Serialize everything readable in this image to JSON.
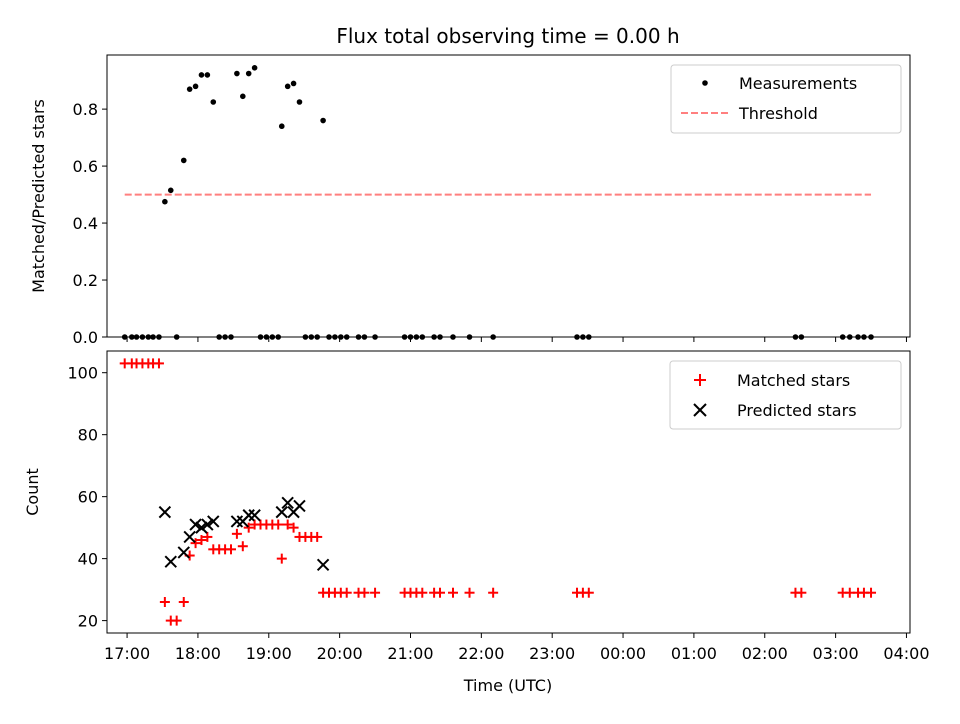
{
  "chart_data": [
    {
      "type": "scatter",
      "title": "Flux total observing time = 0.00 h",
      "xlabel": "",
      "ylabel": "Matched/Predicted stars",
      "xlim": [
        "16:43",
        "04:03"
      ],
      "ylim": [
        0,
        0.99
      ],
      "yticks": [
        "0.0",
        "0.2",
        "0.4",
        "0.6",
        "0.8"
      ],
      "legend": "top-right",
      "series": [
        {
          "name": "Measurements",
          "color": "#000000",
          "marker": "dot",
          "points": [
            {
              "x": "16:58",
              "y": 0
            },
            {
              "x": "17:04",
              "y": 0
            },
            {
              "x": "17:08",
              "y": 0
            },
            {
              "x": "17:13",
              "y": 0
            },
            {
              "x": "17:18",
              "y": 0
            },
            {
              "x": "17:22",
              "y": 0
            },
            {
              "x": "17:27",
              "y": 0
            },
            {
              "x": "17:32",
              "y": 0.475
            },
            {
              "x": "17:37",
              "y": 0.515
            },
            {
              "x": "17:42",
              "y": 0
            },
            {
              "x": "17:48",
              "y": 0.62
            },
            {
              "x": "17:53",
              "y": 0.87
            },
            {
              "x": "17:58",
              "y": 0.88
            },
            {
              "x": "18:03",
              "y": 0.92
            },
            {
              "x": "18:08",
              "y": 0.92
            },
            {
              "x": "18:13",
              "y": 0.825
            },
            {
              "x": "18:18",
              "y": 0
            },
            {
              "x": "18:23",
              "y": 0
            },
            {
              "x": "18:28",
              "y": 0
            },
            {
              "x": "18:33",
              "y": 0.925
            },
            {
              "x": "18:38",
              "y": 0.845
            },
            {
              "x": "18:43",
              "y": 0.925
            },
            {
              "x": "18:48",
              "y": 0.945
            },
            {
              "x": "18:53",
              "y": 0
            },
            {
              "x": "18:58",
              "y": 0
            },
            {
              "x": "19:03",
              "y": 0
            },
            {
              "x": "19:08",
              "y": 0
            },
            {
              "x": "19:11",
              "y": 0.74
            },
            {
              "x": "19:16",
              "y": 0.88
            },
            {
              "x": "19:21",
              "y": 0.89
            },
            {
              "x": "19:26",
              "y": 0.825
            },
            {
              "x": "19:31",
              "y": 0
            },
            {
              "x": "19:36",
              "y": 0
            },
            {
              "x": "19:41",
              "y": 0
            },
            {
              "x": "19:46",
              "y": 0.76
            },
            {
              "x": "19:51",
              "y": 0
            },
            {
              "x": "19:56",
              "y": 0
            },
            {
              "x": "20:01",
              "y": 0
            },
            {
              "x": "20:06",
              "y": 0
            },
            {
              "x": "20:16",
              "y": 0
            },
            {
              "x": "20:21",
              "y": 0
            },
            {
              "x": "20:30",
              "y": 0
            },
            {
              "x": "20:55",
              "y": 0
            },
            {
              "x": "21:00",
              "y": 0
            },
            {
              "x": "21:05",
              "y": 0
            },
            {
              "x": "21:10",
              "y": 0
            },
            {
              "x": "21:20",
              "y": 0
            },
            {
              "x": "21:25",
              "y": 0
            },
            {
              "x": "21:36",
              "y": 0
            },
            {
              "x": "21:50",
              "y": 0
            },
            {
              "x": "22:10",
              "y": 0
            },
            {
              "x": "23:21",
              "y": 0
            },
            {
              "x": "23:26",
              "y": 0
            },
            {
              "x": "23:31",
              "y": 0
            },
            {
              "x": "02:26",
              "y": 0
            },
            {
              "x": "02:31",
              "y": 0
            },
            {
              "x": "03:06",
              "y": 0
            },
            {
              "x": "03:12",
              "y": 0
            },
            {
              "x": "03:19",
              "y": 0
            },
            {
              "x": "03:24",
              "y": 0
            },
            {
              "x": "03:30",
              "y": 0
            }
          ]
        },
        {
          "name": "Threshold",
          "color": "#ff7f7f",
          "style": "dashed",
          "points": [
            {
              "x": "16:58",
              "y": 0.5
            },
            {
              "x": "03:30",
              "y": 0.5
            }
          ]
        }
      ]
    },
    {
      "type": "scatter",
      "xlabel": "Time (UTC)",
      "ylabel": "Count",
      "xlim": [
        "16:43",
        "04:03"
      ],
      "ylim": [
        16,
        107
      ],
      "xticks": [
        "17:00",
        "18:00",
        "19:00",
        "20:00",
        "21:00",
        "22:00",
        "23:00",
        "00:00",
        "01:00",
        "02:00",
        "03:00",
        "04:00"
      ],
      "yticks": [
        "20",
        "40",
        "60",
        "80",
        "100"
      ],
      "legend": "top-right",
      "series": [
        {
          "name": "Matched stars",
          "color": "#ff0000",
          "marker": "plus",
          "points": [
            {
              "x": "16:58",
              "y": 103
            },
            {
              "x": "17:04",
              "y": 103
            },
            {
              "x": "17:08",
              "y": 103
            },
            {
              "x": "17:13",
              "y": 103
            },
            {
              "x": "17:18",
              "y": 103
            },
            {
              "x": "17:22",
              "y": 103
            },
            {
              "x": "17:27",
              "y": 103
            },
            {
              "x": "17:32",
              "y": 26
            },
            {
              "x": "17:37",
              "y": 20
            },
            {
              "x": "17:42",
              "y": 20
            },
            {
              "x": "17:48",
              "y": 26
            },
            {
              "x": "17:53",
              "y": 41
            },
            {
              "x": "17:58",
              "y": 45
            },
            {
              "x": "18:03",
              "y": 46
            },
            {
              "x": "18:08",
              "y": 47
            },
            {
              "x": "18:13",
              "y": 43
            },
            {
              "x": "18:18",
              "y": 43
            },
            {
              "x": "18:23",
              "y": 43
            },
            {
              "x": "18:28",
              "y": 43
            },
            {
              "x": "18:33",
              "y": 48
            },
            {
              "x": "18:38",
              "y": 44
            },
            {
              "x": "18:43",
              "y": 50
            },
            {
              "x": "18:48",
              "y": 51
            },
            {
              "x": "18:53",
              "y": 51
            },
            {
              "x": "18:58",
              "y": 51
            },
            {
              "x": "19:03",
              "y": 51
            },
            {
              "x": "19:08",
              "y": 51
            },
            {
              "x": "19:11",
              "y": 40
            },
            {
              "x": "19:16",
              "y": 51
            },
            {
              "x": "19:21",
              "y": 50
            },
            {
              "x": "19:26",
              "y": 47
            },
            {
              "x": "19:31",
              "y": 47
            },
            {
              "x": "19:36",
              "y": 47
            },
            {
              "x": "19:41",
              "y": 47
            },
            {
              "x": "19:46",
              "y": 29
            },
            {
              "x": "19:51",
              "y": 29
            },
            {
              "x": "19:56",
              "y": 29
            },
            {
              "x": "20:01",
              "y": 29
            },
            {
              "x": "20:06",
              "y": 29
            },
            {
              "x": "20:16",
              "y": 29
            },
            {
              "x": "20:21",
              "y": 29
            },
            {
              "x": "20:30",
              "y": 29
            },
            {
              "x": "20:55",
              "y": 29
            },
            {
              "x": "21:00",
              "y": 29
            },
            {
              "x": "21:05",
              "y": 29
            },
            {
              "x": "21:10",
              "y": 29
            },
            {
              "x": "21:20",
              "y": 29
            },
            {
              "x": "21:25",
              "y": 29
            },
            {
              "x": "21:36",
              "y": 29
            },
            {
              "x": "21:50",
              "y": 29
            },
            {
              "x": "22:10",
              "y": 29
            },
            {
              "x": "23:21",
              "y": 29
            },
            {
              "x": "23:26",
              "y": 29
            },
            {
              "x": "23:31",
              "y": 29
            },
            {
              "x": "02:26",
              "y": 29
            },
            {
              "x": "02:31",
              "y": 29
            },
            {
              "x": "03:06",
              "y": 29
            },
            {
              "x": "03:12",
              "y": 29
            },
            {
              "x": "03:19",
              "y": 29
            },
            {
              "x": "03:24",
              "y": 29
            },
            {
              "x": "03:30",
              "y": 29
            }
          ]
        },
        {
          "name": "Predicted stars",
          "color": "#000000",
          "marker": "x",
          "points": [
            {
              "x": "17:32",
              "y": 55
            },
            {
              "x": "17:37",
              "y": 39
            },
            {
              "x": "17:48",
              "y": 42
            },
            {
              "x": "17:53",
              "y": 47
            },
            {
              "x": "17:58",
              "y": 51
            },
            {
              "x": "18:03",
              "y": 50
            },
            {
              "x": "18:08",
              "y": 51
            },
            {
              "x": "18:13",
              "y": 52
            },
            {
              "x": "18:33",
              "y": 52
            },
            {
              "x": "18:38",
              "y": 52
            },
            {
              "x": "18:43",
              "y": 54
            },
            {
              "x": "18:48",
              "y": 54
            },
            {
              "x": "19:11",
              "y": 55
            },
            {
              "x": "19:16",
              "y": 58
            },
            {
              "x": "19:21",
              "y": 55
            },
            {
              "x": "19:26",
              "y": 57
            },
            {
              "x": "19:46",
              "y": 38
            }
          ]
        }
      ]
    }
  ]
}
